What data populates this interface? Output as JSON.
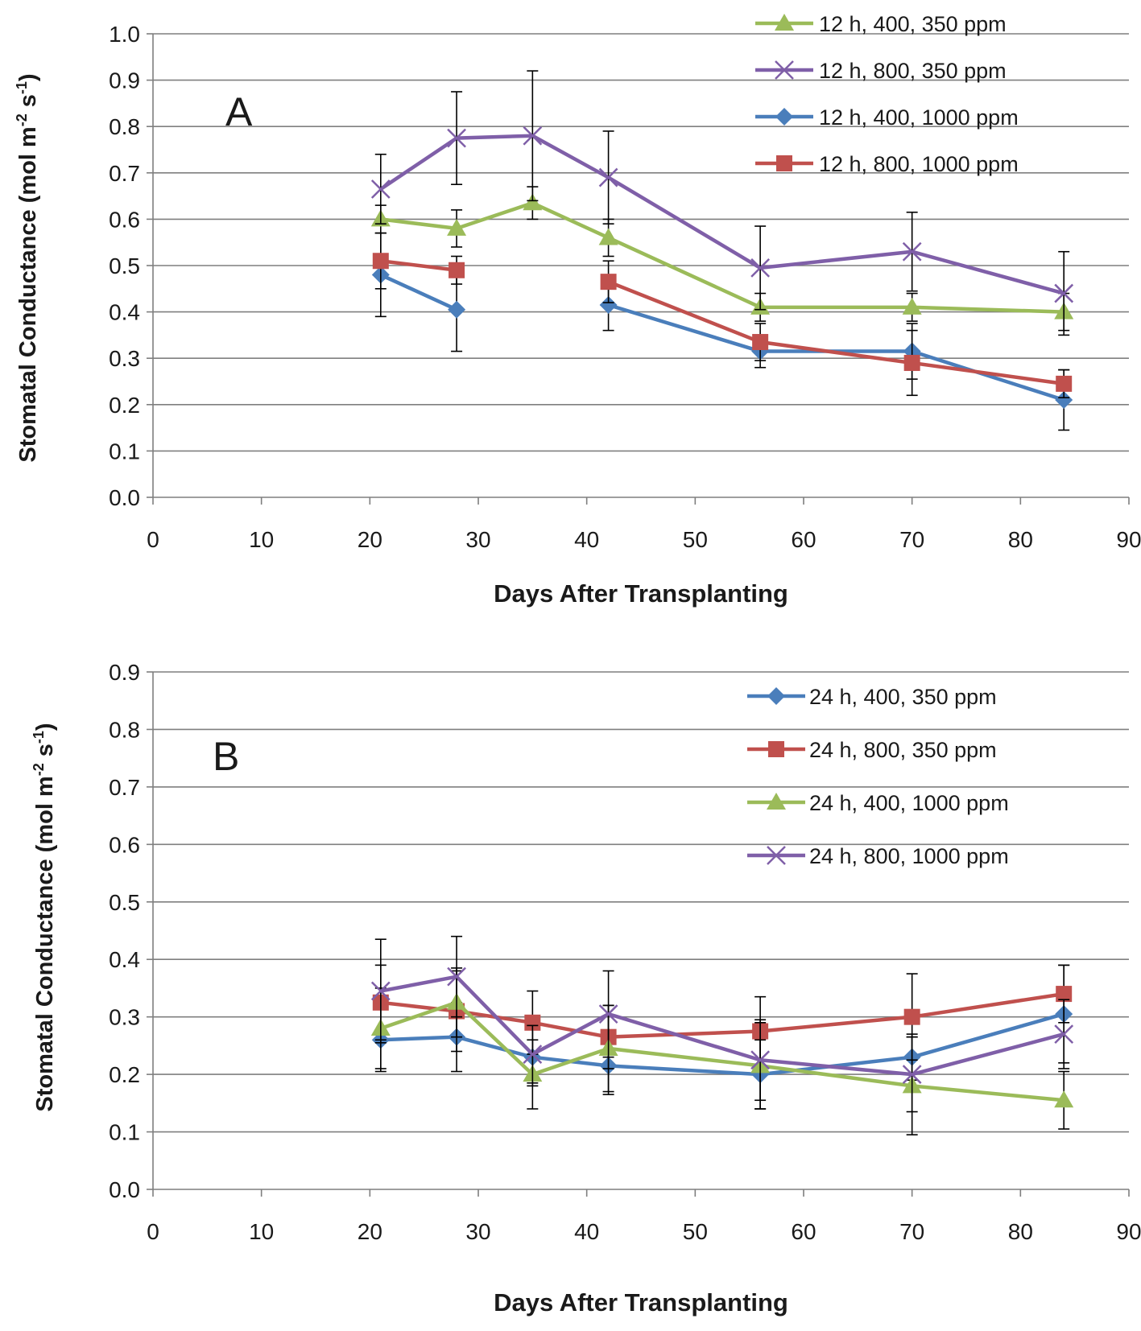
{
  "figure": {
    "panels": [
      {
        "panel_label": "A",
        "ylabel_main": "Stomatal Conductance (mol m",
        "ylabel_exp1": "-2",
        "ylabel_mid": " s",
        "ylabel_exp2": "-1",
        "ylabel_end": ")",
        "yticks": [
          "0.0",
          "0.1",
          "0.2",
          "0.3",
          "0.4",
          "0.5",
          "0.6",
          "0.7",
          "0.8",
          "0.9",
          "1.0"
        ],
        "xticks": [
          "0",
          "10",
          "20",
          "30",
          "40",
          "50",
          "60",
          "70",
          "80",
          "90"
        ]
      },
      {
        "panel_label": "B",
        "ylabel_main": "Stomatal Conductance (mol m",
        "ylabel_exp1": "-2",
        "ylabel_mid": " s",
        "ylabel_exp2": "-1",
        "ylabel_end": ")",
        "yticks": [
          "0.0",
          "0.1",
          "0.2",
          "0.3",
          "0.4",
          "0.5",
          "0.6",
          "0.7",
          "0.8",
          "0.9"
        ],
        "xticks": [
          "0",
          "10",
          "20",
          "30",
          "40",
          "50",
          "60",
          "70",
          "80",
          "90"
        ]
      }
    ]
  },
  "chart_data": [
    {
      "type": "line",
      "panel": "A",
      "title": "",
      "xlabel": "Days After Transplanting",
      "ylabel": "Stomatal Conductance (mol m-2 s-1)",
      "xlim": [
        0,
        90
      ],
      "ylim": [
        0,
        1.0
      ],
      "grid": true,
      "legend_position": "top-right",
      "series": [
        {
          "name": "12 h, 400, 350 ppm",
          "color": "#9bbb59",
          "marker": "triangle",
          "x": [
            21,
            28,
            35,
            42,
            56,
            70,
            84
          ],
          "y": [
            0.6,
            0.58,
            0.635,
            0.56,
            0.41,
            0.41,
            0.4
          ],
          "err": [
            0.03,
            0.04,
            0.035,
            0.04,
            0.03,
            0.03,
            0.04
          ]
        },
        {
          "name": "12 h, 800, 350 ppm",
          "color": "#7f5fa8",
          "marker": "x",
          "x": [
            21,
            28,
            35,
            42,
            56,
            70,
            84
          ],
          "y": [
            0.665,
            0.775,
            0.78,
            0.69,
            0.495,
            0.53,
            0.44
          ],
          "err": [
            0.075,
            0.1,
            0.14,
            0.1,
            0.09,
            0.085,
            0.09
          ]
        },
        {
          "name": "12 h, 400, 1000 ppm",
          "color": "#4a7ebb",
          "marker": "diamond",
          "x": [
            21,
            28,
            null,
            42,
            56,
            70,
            84
          ],
          "y": [
            0.48,
            0.405,
            null,
            0.415,
            0.315,
            0.315,
            0.21
          ],
          "err": [
            0.09,
            0.09,
            null,
            0.055,
            0.035,
            0.06,
            0.065
          ]
        },
        {
          "name": "12 h, 800, 1000 ppm",
          "color": "#c0504d",
          "marker": "square",
          "x": [
            21,
            28,
            null,
            42,
            56,
            70,
            84
          ],
          "y": [
            0.51,
            0.49,
            null,
            0.465,
            0.335,
            0.29,
            0.245
          ],
          "err": [
            0.06,
            0.03,
            null,
            0.045,
            0.04,
            0.07,
            0.03
          ]
        }
      ]
    },
    {
      "type": "line",
      "panel": "B",
      "title": "",
      "xlabel": "Days After Transplanting",
      "ylabel": "Stomatal Conductance (mol m-2 s-1)",
      "xlim": [
        0,
        90
      ],
      "ylim": [
        0,
        0.9
      ],
      "grid": true,
      "legend_position": "top-right",
      "series": [
        {
          "name": "24 h, 400, 350 ppm",
          "color": "#4a7ebb",
          "marker": "diamond",
          "x": [
            21,
            28,
            35,
            42,
            56,
            70,
            84
          ],
          "y": [
            0.26,
            0.265,
            0.23,
            0.215,
            0.2,
            0.23,
            0.305
          ],
          "err": [
            0.055,
            0.06,
            0.05,
            0.05,
            0.06,
            0.04,
            0.085
          ]
        },
        {
          "name": "24 h, 800, 350 ppm",
          "color": "#c0504d",
          "marker": "square",
          "x": [
            21,
            28,
            35,
            42,
            56,
            70,
            84
          ],
          "y": [
            0.325,
            0.31,
            0.29,
            0.265,
            0.275,
            0.3,
            0.34
          ],
          "err": [
            0.065,
            0.07,
            0.055,
            0.055,
            0.06,
            0.075,
            0.05
          ]
        },
        {
          "name": "24 h, 400, 1000 ppm",
          "color": "#9bbb59",
          "marker": "triangle",
          "x": [
            21,
            28,
            35,
            42,
            56,
            70,
            84
          ],
          "y": [
            0.28,
            0.325,
            0.2,
            0.245,
            0.215,
            0.18,
            0.155
          ],
          "err": [
            0.07,
            0.06,
            0.06,
            0.075,
            0.075,
            0.085,
            0.05
          ]
        },
        {
          "name": "24 h, 800, 1000 ppm",
          "color": "#7f5fa8",
          "marker": "x",
          "x": [
            21,
            28,
            35,
            42,
            56,
            70,
            84
          ],
          "y": [
            0.345,
            0.37,
            0.235,
            0.305,
            0.225,
            0.2,
            0.27
          ],
          "err": [
            0.09,
            0.07,
            0.05,
            0.075,
            0.07,
            0.065,
            0.06
          ]
        }
      ]
    }
  ]
}
